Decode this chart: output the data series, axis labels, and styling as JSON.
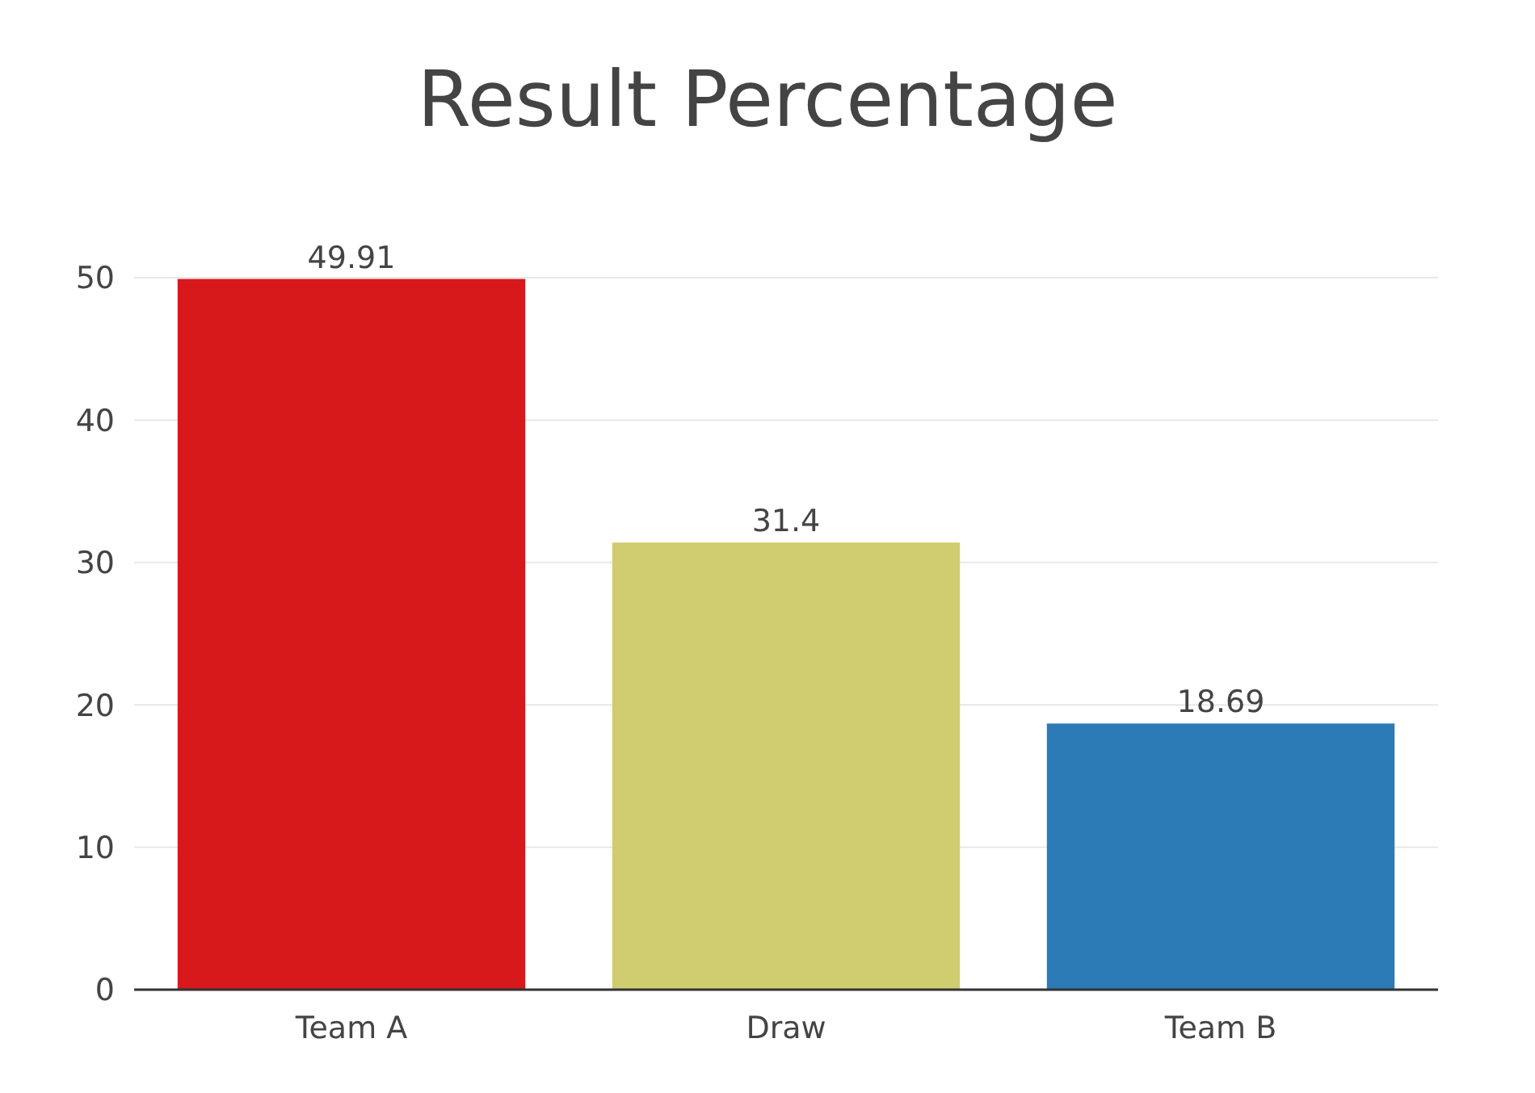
{
  "chart_data": {
    "type": "bar",
    "title": "Result Percentage",
    "categories": [
      "Team A",
      "Draw",
      "Team B"
    ],
    "values": [
      49.91,
      31.4,
      18.69
    ],
    "colors": [
      "#d7191c",
      "#cfcd6f",
      "#2c7bb6"
    ],
    "ylim": [
      0,
      50
    ],
    "yticks": [
      0,
      10,
      20,
      30,
      40,
      50
    ],
    "grid": "y",
    "data_labels": true
  }
}
